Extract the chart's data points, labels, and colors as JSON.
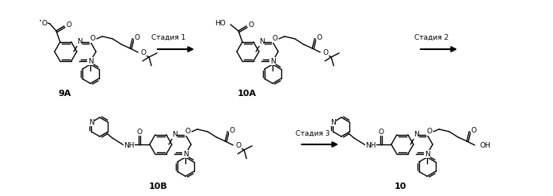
{
  "bg_color": "#ffffff",
  "fig_width": 6.98,
  "fig_height": 2.47,
  "dpi": 100,
  "stage1": "Стадия 1",
  "stage2": "Стадия 2",
  "stage3": "Стадия 3",
  "label_9A": "9A",
  "label_10A": "10A",
  "label_10B": "10B",
  "label_10": "10"
}
